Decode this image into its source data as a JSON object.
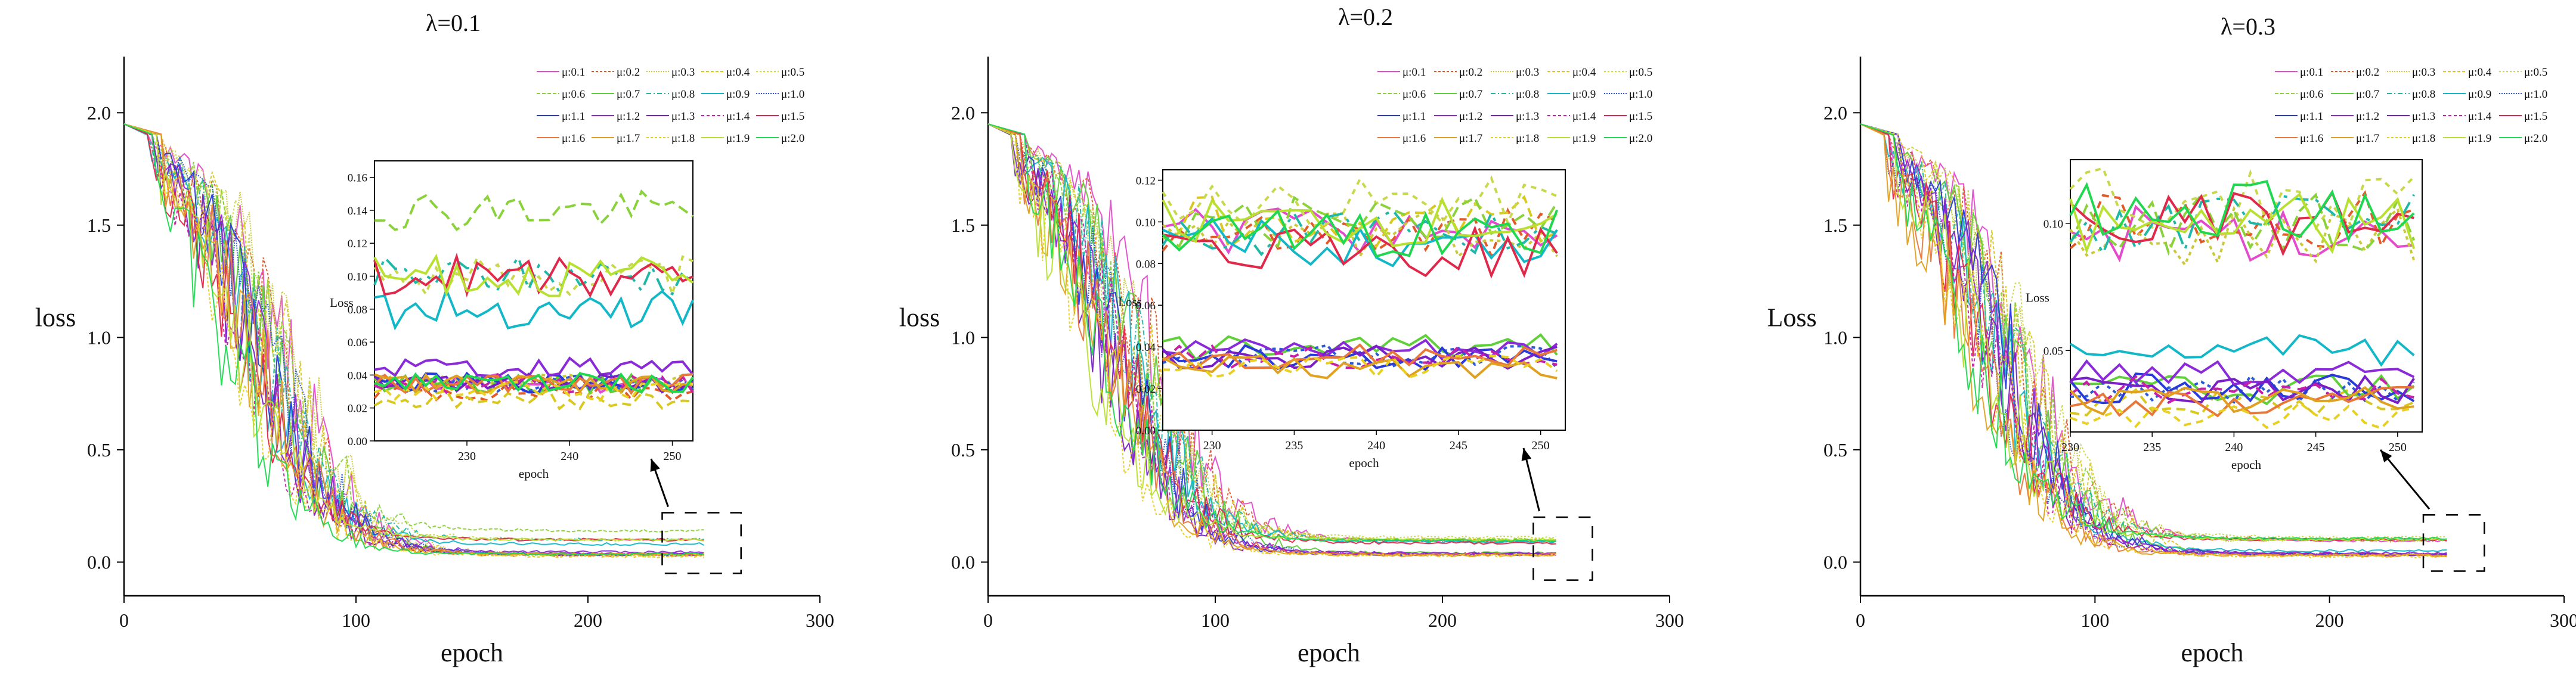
{
  "chart_data": [
    {
      "type": "line",
      "title": "λ=0.1",
      "xlabel": "epoch",
      "ylabel": "loss",
      "xlim": [
        0,
        300
      ],
      "ylim": [
        -0.15,
        2.25
      ],
      "xticks": [
        "0",
        "100",
        "200",
        "300"
      ],
      "yticks": [
        "0.0",
        "0.5",
        "1.0",
        "1.5",
        "2.0"
      ],
      "legend": [
        "μ:0.1",
        "μ:0.2",
        "μ:0.3",
        "μ:0.4",
        "μ:0.5",
        "μ:0.6",
        "μ:0.7",
        "μ:0.8",
        "μ:0.9",
        "μ:1.0",
        "μ:1.1",
        "μ:1.2",
        "μ:1.3",
        "μ:1.4",
        "μ:1.5",
        "μ:1.6",
        "μ:1.7",
        "μ:1.8",
        "μ:1.9",
        "μ:2.0"
      ],
      "legend_position": "top-right",
      "start_loss": 1.95,
      "final_losses": [
        0.035,
        0.03,
        0.035,
        0.025,
        0.1,
        0.14,
        0.035,
        0.1,
        0.08,
        0.035,
        0.035,
        0.045,
        0.035,
        0.035,
        0.1,
        0.035,
        0.035,
        0.03,
        0.1,
        0.035
      ],
      "inset": {
        "xlabel": "epoch",
        "ylabel": "Loss",
        "xlim": [
          221,
          252
        ],
        "ylim": [
          0,
          0.17
        ],
        "xticks": [
          "230",
          "240",
          "250"
        ],
        "yticks": [
          "0.00",
          "0.02",
          "0.04",
          "0.06",
          "0.08",
          "0.10",
          "0.12",
          "0.14",
          "0.16"
        ],
        "zoom_range": {
          "x": [
            232,
            266
          ],
          "y": [
            -0.05,
            0.22
          ]
        }
      }
    },
    {
      "type": "line",
      "title": "λ=0.2",
      "xlabel": "epoch",
      "ylabel": "loss",
      "xlim": [
        0,
        300
      ],
      "ylim": [
        -0.15,
        2.25
      ],
      "xticks": [
        "0",
        "100",
        "200",
        "300"
      ],
      "yticks": [
        "0.0",
        "0.5",
        "1.0",
        "1.5",
        "2.0"
      ],
      "legend": [
        "μ:0.1",
        "μ:0.2",
        "μ:0.3",
        "μ:0.4",
        "μ:0.5",
        "μ:0.6",
        "μ:0.7",
        "μ:0.8",
        "μ:0.9",
        "μ:1.0",
        "μ:1.1",
        "μ:1.2",
        "μ:1.3",
        "μ:1.4",
        "μ:1.5",
        "μ:1.6",
        "μ:1.7",
        "μ:1.8",
        "μ:1.9",
        "μ:2.0"
      ],
      "legend_position": "top-right",
      "start_loss": 1.95,
      "final_losses": [
        0.095,
        0.095,
        0.095,
        0.1,
        0.11,
        0.1,
        0.04,
        0.095,
        0.09,
        0.035,
        0.035,
        0.04,
        0.035,
        0.035,
        0.085,
        0.035,
        0.03,
        0.03,
        0.1,
        0.095
      ],
      "inset": {
        "xlabel": "epoch",
        "ylabel": "Loss",
        "xlim": [
          227,
          251.5
        ],
        "ylim": [
          0,
          0.125
        ],
        "xticks": [
          "230",
          "235",
          "240",
          "245",
          "250"
        ],
        "yticks": [
          "0.00",
          "0.02",
          "0.04",
          "0.06",
          "0.08",
          "0.10",
          "0.12"
        ],
        "zoom_range": {
          "x": [
            240,
            266
          ],
          "y": [
            -0.08,
            0.2
          ]
        }
      }
    },
    {
      "type": "line",
      "title": "λ=0.3",
      "xlabel": "epoch",
      "ylabel": "Loss",
      "xlim": [
        0,
        300
      ],
      "ylim": [
        -0.15,
        2.25
      ],
      "xticks": [
        "0",
        "100",
        "200",
        "300"
      ],
      "yticks": [
        "0.0",
        "0.5",
        "1.0",
        "1.5",
        "2.0"
      ],
      "legend": [
        "μ:0.1",
        "μ:0.2",
        "μ:0.3",
        "μ:0.4",
        "μ:0.5",
        "μ:0.6",
        "μ:0.7",
        "μ:0.8",
        "μ:0.9",
        "μ:1.0",
        "μ:1.1",
        "μ:1.2",
        "μ:1.3",
        "μ:1.4",
        "μ:1.5",
        "μ:1.6",
        "μ:1.7",
        "μ:1.8",
        "μ:1.9",
        "μ:2.0"
      ],
      "legend_position": "top-right",
      "start_loss": 1.95,
      "final_losses": [
        0.095,
        0.1,
        0.095,
        0.03,
        0.11,
        0.1,
        0.035,
        0.1,
        0.05,
        0.035,
        0.035,
        0.04,
        0.035,
        0.035,
        0.1,
        0.03,
        0.03,
        0.025,
        0.1,
        0.105
      ],
      "inset": {
        "xlabel": "epoch",
        "ylabel": "Loss",
        "xlim": [
          230,
          251.5
        ],
        "ylim": [
          0.018,
          0.125
        ],
        "xticks": [
          "230",
          "235",
          "240",
          "245",
          "250"
        ],
        "yticks": [
          "0.05",
          "0.10"
        ],
        "zoom_range": {
          "x": [
            240,
            266
          ],
          "y": [
            -0.04,
            0.21
          ]
        }
      }
    }
  ],
  "series_colors": [
    "#e44bcc",
    "#e05a2a",
    "#c9c93a",
    "#d8c820",
    "#c8d84a",
    "#8ad23a",
    "#5fd03a",
    "#1fb8a8",
    "#12b8c8",
    "#2a5ad8",
    "#2a3ad8",
    "#8a2ad8",
    "#7a1fc8",
    "#c81fa8",
    "#e0284a",
    "#e8783a",
    "#e0a020",
    "#e8d020",
    "#b8e030",
    "#1fd850"
  ],
  "series_dash": [
    "solid",
    "4 3",
    "2 2",
    "5 3",
    "3 3",
    "6 3",
    "solid",
    "8 4 2 4",
    "solid",
    "2 2",
    "solid",
    "solid",
    "solid",
    "5 4",
    "solid",
    "solid",
    "solid",
    "4 3",
    "solid",
    "solid"
  ]
}
